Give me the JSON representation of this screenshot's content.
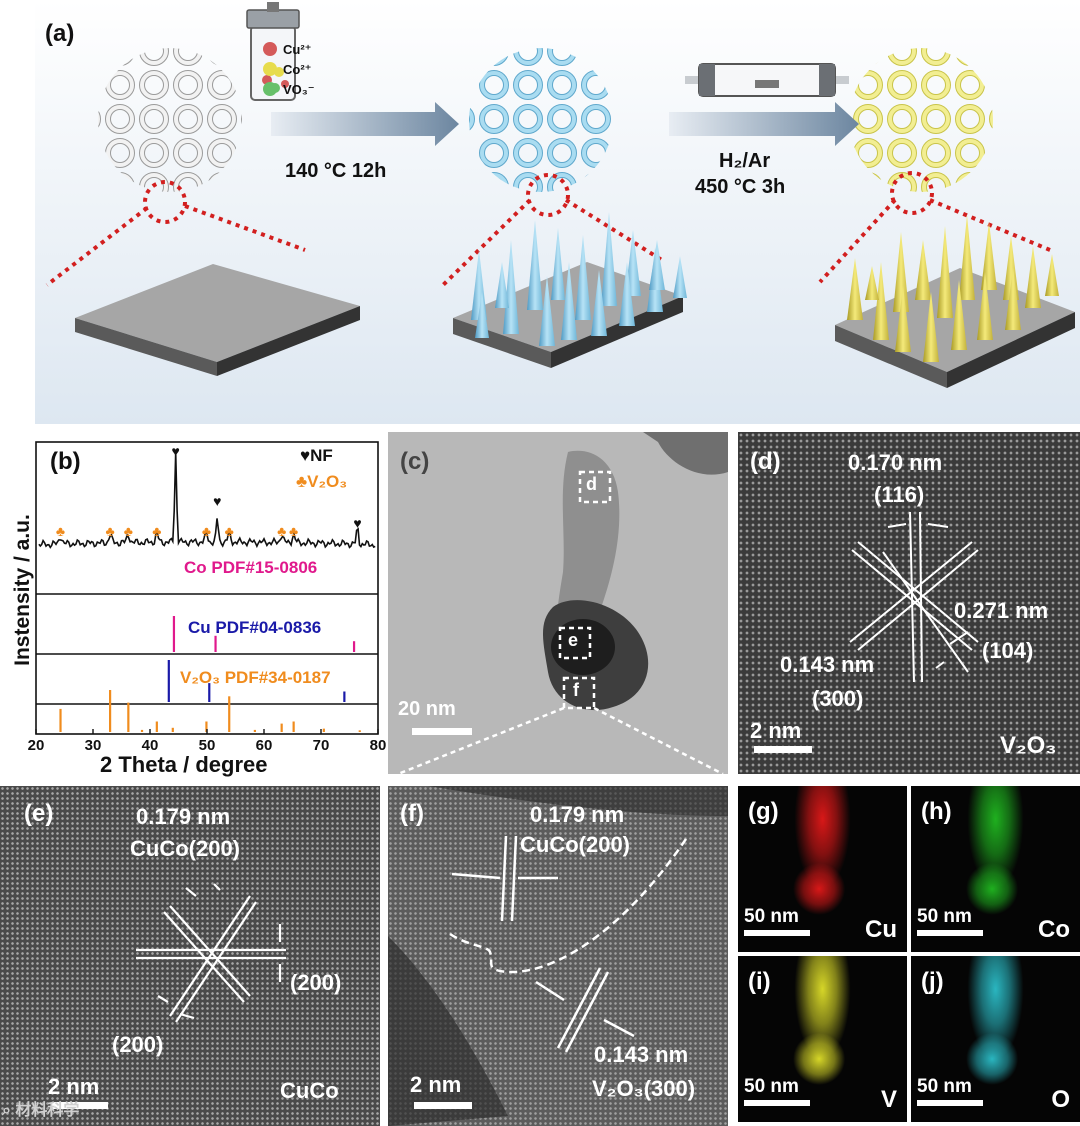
{
  "panel_a": {
    "label": "(a)",
    "ions": [
      "Cu²⁺",
      "Co²⁺",
      "VO₃⁻"
    ],
    "step1": "140 °C 12h",
    "step2_gas": "H₂/Ar",
    "step2_cond": "450 °C 3h",
    "colors": {
      "substrate": "#a6a6a6",
      "precursor": "#8ec9e6",
      "product": "#e8e36a",
      "zoom": "#d21f1f"
    }
  },
  "panel_b": {
    "label": "(b)",
    "legend_nf": "♥NF",
    "legend_v2o3": "♣V₂O₃",
    "ref_co": "Co PDF#15-0806",
    "ref_cu": "Cu PDF#04-0836",
    "ref_v2o3": "V₂O₃ PDF#34-0187",
    "ylabel": "Instensity / a.u.",
    "xlabel": "2 Theta / degree"
  },
  "chart_data": {
    "type": "line",
    "title": "",
    "xlabel": "2 Theta / degree",
    "ylabel": "Instensity / a.u.",
    "xlim": [
      20,
      80
    ],
    "xticks": [
      "20",
      "30",
      "40",
      "50",
      "60",
      "70",
      "80"
    ],
    "nf_peaks_2theta": [
      44.5,
      51.8,
      76.4
    ],
    "v2o3_peaks_2theta": [
      24.3,
      33.0,
      36.2,
      41.2,
      49.9,
      53.9,
      63.1,
      65.2
    ],
    "reference_patterns": [
      {
        "name": "Co PDF#15-0806",
        "color": "#e0198c",
        "lines": [
          {
            "x": 44.2,
            "h": 1.0
          },
          {
            "x": 51.5,
            "h": 0.45
          },
          {
            "x": 75.8,
            "h": 0.3
          }
        ]
      },
      {
        "name": "Cu PDF#04-0836",
        "color": "#1a1aa8",
        "lines": [
          {
            "x": 43.3,
            "h": 1.0
          },
          {
            "x": 50.4,
            "h": 0.45
          },
          {
            "x": 74.1,
            "h": 0.25
          }
        ]
      },
      {
        "name": "V₂O₃ PDF#34-0187",
        "color": "#f08c1e",
        "lines": [
          {
            "x": 24.3,
            "h": 0.55
          },
          {
            "x": 33.0,
            "h": 1.0
          },
          {
            "x": 36.2,
            "h": 0.7
          },
          {
            "x": 38.6,
            "h": 0.05
          },
          {
            "x": 41.2,
            "h": 0.25
          },
          {
            "x": 44.0,
            "h": 0.1
          },
          {
            "x": 49.9,
            "h": 0.25
          },
          {
            "x": 53.9,
            "h": 0.85
          },
          {
            "x": 58.4,
            "h": 0.05
          },
          {
            "x": 63.1,
            "h": 0.2
          },
          {
            "x": 65.2,
            "h": 0.25
          },
          {
            "x": 70.5,
            "h": 0.08
          },
          {
            "x": 76.8,
            "h": 0.04
          }
        ]
      }
    ]
  },
  "panel_c": {
    "label": "(c)",
    "box_d": "d",
    "box_e": "e",
    "box_f": "f",
    "scale": "20 nm"
  },
  "panel_d": {
    "label": "(d)",
    "d1": "0.170 nm",
    "h1": "(116)",
    "d2": "0.271 nm",
    "h2": "(104)",
    "d3": "0.143 nm",
    "h3": "(300)",
    "scale": "2 nm",
    "phase": "V₂O₃"
  },
  "panel_e": {
    "label": "(e)",
    "d1": "0.179 nm",
    "phase_plane": "CuCo(200)",
    "h1": "(200)",
    "h2": "(200)",
    "scale": "2 nm",
    "phase": "CuCo",
    "watermark": "⌕ 材料科学"
  },
  "panel_f": {
    "label": "(f)",
    "d1": "0.179 nm",
    "h1": "CuCo(200)",
    "d2": "0.143 nm",
    "h2": "V₂O₃(300)",
    "scale": "2 nm"
  },
  "maps": [
    {
      "label": "(g)",
      "element": "Cu",
      "scale": "50 nm",
      "color": "#d81818"
    },
    {
      "label": "(h)",
      "element": "Co",
      "scale": "50 nm",
      "color": "#1fb01f"
    },
    {
      "label": "(i)",
      "element": "V",
      "scale": "50 nm",
      "color": "#d6d628"
    },
    {
      "label": "(j)",
      "element": "O",
      "scale": "50 nm",
      "color": "#2ab6c0"
    }
  ]
}
